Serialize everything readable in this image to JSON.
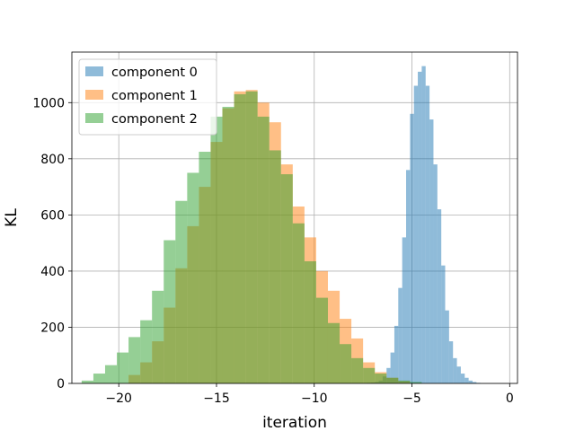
{
  "chart_data": {
    "type": "bar",
    "subtype": "histogram",
    "xlabel": "iteration",
    "ylabel": "KL",
    "xlim": [
      -22.4,
      0.4
    ],
    "ylim": [
      0,
      1180
    ],
    "x_ticks": [
      -20,
      -15,
      -10,
      -5,
      0
    ],
    "x_tick_labels": [
      "−20",
      "−15",
      "−10",
      "−5",
      "0"
    ],
    "y_ticks": [
      0,
      200,
      400,
      600,
      800,
      1000
    ],
    "y_tick_labels": [
      "0",
      "200",
      "400",
      "600",
      "800",
      "1000"
    ],
    "grid": true,
    "legend_position": "top-left",
    "bar_alpha": 0.5,
    "series": [
      {
        "name": "component 0",
        "color": "#1f77b4",
        "bin_start": -7.3,
        "bin_width": 0.2,
        "values": [
          2,
          3,
          5,
          10,
          25,
          55,
          110,
          205,
          340,
          520,
          760,
          960,
          1060,
          1110,
          1130,
          1060,
          940,
          780,
          620,
          420,
          260,
          150,
          90,
          60,
          35,
          20,
          10,
          5,
          2
        ]
      },
      {
        "name": "component 1",
        "color": "#ff7f0e",
        "bin_start": -19.5,
        "bin_width": 0.6,
        "values": [
          30,
          75,
          150,
          270,
          410,
          560,
          700,
          860,
          980,
          1040,
          1045,
          1000,
          930,
          780,
          630,
          520,
          400,
          330,
          230,
          160,
          75,
          40,
          20,
          8
        ]
      },
      {
        "name": "component 2",
        "color": "#2ca02c",
        "bin_start": -21.9,
        "bin_width": 0.6,
        "values": [
          10,
          35,
          65,
          110,
          165,
          225,
          330,
          510,
          650,
          750,
          825,
          950,
          985,
          1030,
          1040,
          950,
          830,
          745,
          570,
          435,
          305,
          215,
          140,
          90,
          55,
          35,
          20,
          10,
          5
        ]
      }
    ]
  }
}
